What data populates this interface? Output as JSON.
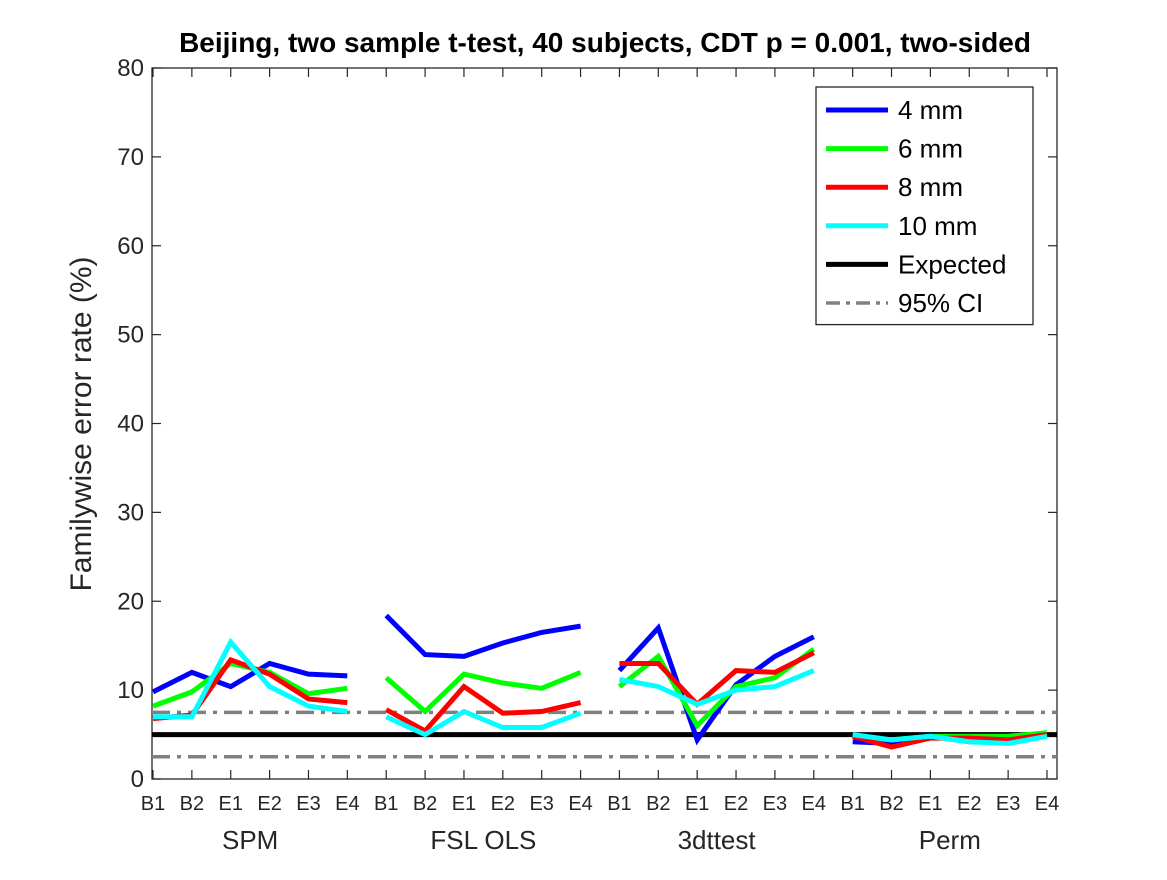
{
  "chart_data": {
    "type": "line",
    "title": "Beijing, two sample t-test, 40 subjects, CDT p = 0.001, two-sided",
    "xlabel": "",
    "ylabel": "Familywise error rate (%)",
    "ylim": [
      0,
      80
    ],
    "yticks": [
      0,
      10,
      20,
      30,
      40,
      50,
      60,
      70,
      80
    ],
    "xticks": [
      "B1",
      "B2",
      "E1",
      "E2",
      "E3",
      "E4",
      "B1",
      "B2",
      "E1",
      "E2",
      "E3",
      "E4",
      "B1",
      "B2",
      "E1",
      "E2",
      "E3",
      "E4",
      "B1",
      "B2",
      "E1",
      "E2",
      "E3",
      "E4"
    ],
    "groups": [
      {
        "label": "SPM",
        "start": 0,
        "end": 5
      },
      {
        "label": "FSL OLS",
        "start": 6,
        "end": 11
      },
      {
        "label": "3dttest",
        "start": 12,
        "end": 17
      },
      {
        "label": "Perm",
        "start": 18,
        "end": 23
      }
    ],
    "grid": false,
    "legend_position": "top-right",
    "series": [
      {
        "name": "4 mm",
        "color": "#0000ff",
        "values": [
          9.8,
          12.0,
          10.4,
          13.0,
          11.8,
          11.6,
          18.4,
          14.0,
          13.8,
          15.3,
          16.5,
          17.2,
          12.2,
          17.0,
          4.4,
          10.6,
          13.8,
          16.0,
          4.2,
          4.0,
          4.8,
          4.2,
          4.2,
          5.0
        ]
      },
      {
        "name": "6 mm",
        "color": "#00ff00",
        "values": [
          8.2,
          9.8,
          13.0,
          12.0,
          9.6,
          10.2,
          11.4,
          7.6,
          11.8,
          10.8,
          10.2,
          12.0,
          10.4,
          13.8,
          6.0,
          10.4,
          11.4,
          14.6,
          4.8,
          4.4,
          4.8,
          4.8,
          4.8,
          5.2
        ]
      },
      {
        "name": "8 mm",
        "color": "#ff0000",
        "values": [
          6.8,
          7.2,
          13.4,
          11.8,
          9.0,
          8.6,
          7.8,
          5.4,
          10.4,
          7.4,
          7.6,
          8.6,
          13.0,
          13.0,
          8.4,
          12.2,
          12.0,
          14.2,
          4.8,
          3.6,
          4.6,
          4.6,
          4.4,
          5.0
        ]
      },
      {
        "name": "10 mm",
        "color": "#00ffff",
        "values": [
          7.0,
          7.0,
          15.4,
          10.4,
          8.2,
          7.6,
          7.0,
          5.0,
          7.6,
          5.8,
          5.8,
          7.4,
          11.2,
          10.4,
          8.4,
          10.0,
          10.4,
          12.2,
          5.0,
          4.4,
          4.8,
          4.2,
          4.0,
          4.8
        ]
      }
    ],
    "reference_lines": [
      {
        "name": "Expected",
        "value": 5,
        "color": "#000000",
        "style": "solid"
      },
      {
        "name": "95% CI",
        "value": 7.5,
        "color": "#808080",
        "style": "dash-dot"
      },
      {
        "name": "95% CI",
        "value": 2.5,
        "color": "#808080",
        "style": "dash-dot"
      }
    ],
    "legend": [
      {
        "label": "4 mm",
        "color": "#0000ff",
        "style": "solid"
      },
      {
        "label": "6 mm",
        "color": "#00ff00",
        "style": "solid"
      },
      {
        "label": "8 mm",
        "color": "#ff0000",
        "style": "solid"
      },
      {
        "label": "10 mm",
        "color": "#00ffff",
        "style": "solid"
      },
      {
        "label": "Expected",
        "color": "#000000",
        "style": "solid"
      },
      {
        "label": "95% CI",
        "color": "#808080",
        "style": "dash-dot"
      }
    ]
  }
}
